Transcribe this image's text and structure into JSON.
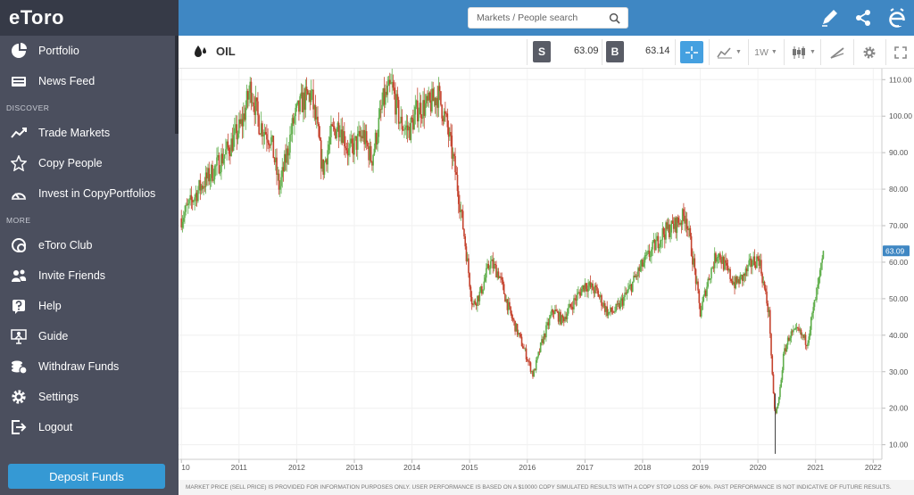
{
  "brand": {
    "logo": "eToro"
  },
  "sidebar": {
    "items": [
      {
        "label": "Portfolio",
        "name": "portfolio",
        "icon": "pie-chart-icon"
      },
      {
        "label": "News Feed",
        "name": "news-feed",
        "icon": "news-icon"
      },
      {
        "label": "Trade Markets",
        "name": "trade-markets",
        "icon": "trend-icon"
      },
      {
        "label": "Copy People",
        "name": "copy-people",
        "icon": "star-icon"
      },
      {
        "label": "Invest in CopyPortfolios",
        "name": "copyportfolios",
        "icon": "gauge-icon"
      },
      {
        "label": "eToro Club",
        "name": "etoro-club",
        "icon": "club-icon"
      },
      {
        "label": "Invite Friends",
        "name": "invite-friends",
        "icon": "users-icon"
      },
      {
        "label": "Help",
        "name": "help",
        "icon": "help-icon"
      },
      {
        "label": "Guide",
        "name": "guide",
        "icon": "guide-icon"
      },
      {
        "label": "Withdraw Funds",
        "name": "withdraw-funds",
        "icon": "coins-icon"
      },
      {
        "label": "Settings",
        "name": "settings",
        "icon": "gear-icon"
      },
      {
        "label": "Logout",
        "name": "logout",
        "icon": "logout-icon"
      }
    ],
    "sections": {
      "discover": "DISCOVER",
      "more": "MORE"
    },
    "deposit_label": "Deposit Funds"
  },
  "header": {
    "search_placeholder": "Markets / People search"
  },
  "instrument": {
    "name": "OIL",
    "sell_label": "S",
    "sell_price": "63.09",
    "buy_label": "B",
    "buy_price": "63.14",
    "timeframe": "1W"
  },
  "chart_data": {
    "type": "candlestick",
    "x_ticks": [
      "10",
      "2011",
      "2012",
      "2013",
      "2014",
      "2015",
      "2016",
      "2017",
      "2018",
      "2019",
      "2020",
      "2021",
      "2022"
    ],
    "y_ticks": [
      "10.00",
      "20.00",
      "30.00",
      "40.00",
      "50.00",
      "60.00",
      "70.00",
      "80.00",
      "90.00",
      "100.00",
      "110.00"
    ],
    "ylim": [
      6,
      113
    ],
    "current_price_label": "63.09",
    "current_price": 63.09,
    "grid": true,
    "up_color": "#5fae4b",
    "down_color": "#c5432e",
    "trend": [
      [
        2010.0,
        72
      ],
      [
        2010.3,
        80
      ],
      [
        2010.6,
        86
      ],
      [
        2010.85,
        92
      ],
      [
        2011.05,
        98
      ],
      [
        2011.2,
        108
      ],
      [
        2011.35,
        98
      ],
      [
        2011.55,
        94
      ],
      [
        2011.7,
        80
      ],
      [
        2011.95,
        99
      ],
      [
        2012.1,
        104
      ],
      [
        2012.25,
        106
      ],
      [
        2012.35,
        97
      ],
      [
        2012.45,
        85
      ],
      [
        2012.6,
        95
      ],
      [
        2012.75,
        98
      ],
      [
        2012.9,
        90
      ],
      [
        2013.15,
        95
      ],
      [
        2013.3,
        88
      ],
      [
        2013.5,
        104
      ],
      [
        2013.65,
        108
      ],
      [
        2013.8,
        98
      ],
      [
        2013.95,
        96
      ],
      [
        2014.1,
        102
      ],
      [
        2014.3,
        103
      ],
      [
        2014.45,
        106
      ],
      [
        2014.6,
        98
      ],
      [
        2014.75,
        85
      ],
      [
        2014.9,
        68
      ],
      [
        2015.05,
        48
      ],
      [
        2015.2,
        52
      ],
      [
        2015.35,
        60
      ],
      [
        2015.5,
        57
      ],
      [
        2015.7,
        46
      ],
      [
        2015.85,
        40
      ],
      [
        2015.97,
        35
      ],
      [
        2016.1,
        29
      ],
      [
        2016.25,
        38
      ],
      [
        2016.45,
        47
      ],
      [
        2016.6,
        44
      ],
      [
        2016.8,
        49
      ],
      [
        2017.0,
        54
      ],
      [
        2017.2,
        52
      ],
      [
        2017.4,
        46
      ],
      [
        2017.55,
        47
      ],
      [
        2017.75,
        52
      ],
      [
        2017.95,
        58
      ],
      [
        2018.15,
        63
      ],
      [
        2018.35,
        68
      ],
      [
        2018.55,
        70
      ],
      [
        2018.75,
        73
      ],
      [
        2018.9,
        58
      ],
      [
        2019.0,
        46
      ],
      [
        2019.15,
        56
      ],
      [
        2019.3,
        63
      ],
      [
        2019.45,
        58
      ],
      [
        2019.6,
        54
      ],
      [
        2019.75,
        56
      ],
      [
        2019.9,
        60
      ],
      [
        2020.02,
        61
      ],
      [
        2020.12,
        52
      ],
      [
        2020.2,
        45
      ],
      [
        2020.26,
        25
      ],
      [
        2020.3,
        18
      ],
      [
        2020.36,
        22
      ],
      [
        2020.45,
        35
      ],
      [
        2020.55,
        40
      ],
      [
        2020.7,
        41
      ],
      [
        2020.85,
        38
      ],
      [
        2020.95,
        46
      ],
      [
        2021.05,
        54
      ],
      [
        2021.15,
        63
      ]
    ]
  },
  "chart_tools": {
    "plus": "+",
    "minus": "−"
  },
  "footer": {
    "disclaimer": "MARKET PRICE (SELL PRICE) IS PROVIDED FOR INFORMATION PURPOSES ONLY. USER PERFORMANCE IS BASED ON A $10000 COPY SIMULATED RESULTS WITH A COPY STOP LOSS OF 60%. PAST PERFORMANCE IS NOT INDICATIVE OF FUTURE RESULTS."
  }
}
